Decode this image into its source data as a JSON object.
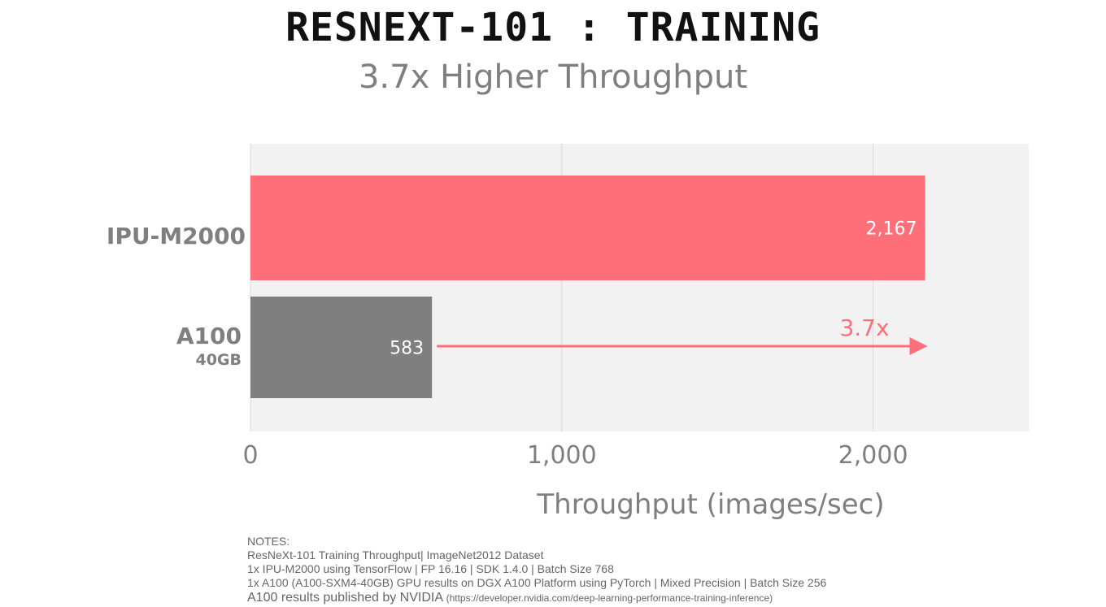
{
  "chart_data": {
    "type": "bar",
    "orientation": "horizontal",
    "title": "RESNEXT-101 : TRAINING",
    "subtitle": "3.7x Higher Throughput",
    "categories": [
      {
        "label": "IPU-M2000",
        "sublabel": ""
      },
      {
        "label": "A100",
        "sublabel": "40GB"
      }
    ],
    "values": [
      2167,
      583
    ],
    "value_labels": [
      "2,167",
      "583"
    ],
    "bar_colors": [
      "#ff6f79",
      "#7f7f7f"
    ],
    "xlabel": "Throughput (images/sec)",
    "ylabel": "",
    "xlim": [
      0,
      2500
    ],
    "xticks": [
      0,
      1000,
      2000
    ],
    "xtick_labels": [
      "0",
      "1,000",
      "2,000"
    ],
    "grid": true,
    "plot_background": "#f2f2f2",
    "annotation": {
      "text": "3.7x",
      "from_value": 583,
      "to_value": 2167,
      "color": "#ff6f79"
    }
  },
  "notes": {
    "heading": "NOTES:",
    "line1": "ResNeXt-101 Training Throughput| ImageNet2012 Dataset",
    "line2": "1x IPU-M2000 using TensorFlow | FP 16.16 | SDK 1.4.0 | Batch Size 768",
    "line3": "1x A100 (A100-SXM4-40GB)  GPU results on DGX A100 Platform using PyTorch | Mixed Precision | Batch Size 256",
    "line4": "A100 results published by NVIDIA",
    "line4_url": "(https://developer.nvidia.com/deep-learning-performance-training-inference)"
  }
}
